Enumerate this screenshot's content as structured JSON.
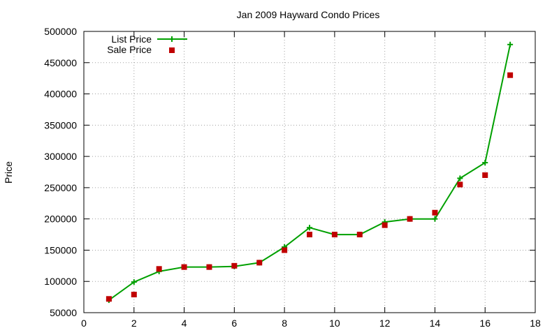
{
  "chart_data": {
    "type": "line",
    "title": "Jan 2009 Hayward Condo Prices",
    "xlabel": "",
    "ylabel": "Price",
    "xlim": [
      0,
      18
    ],
    "ylim": [
      50000,
      500000
    ],
    "xticks": [
      0,
      2,
      4,
      6,
      8,
      10,
      12,
      14,
      16,
      18
    ],
    "yticks": [
      50000,
      100000,
      150000,
      200000,
      250000,
      300000,
      350000,
      400000,
      450000,
      500000
    ],
    "grid": true,
    "legend": "top-left",
    "x": [
      1,
      2,
      3,
      4,
      5,
      6,
      7,
      8,
      9,
      10,
      11,
      12,
      13,
      14,
      15,
      16,
      17
    ],
    "series": [
      {
        "name": "List Price",
        "style": "line-with-plus-markers",
        "color": "#00a000",
        "values": [
          70000,
          99000,
          116000,
          123000,
          123000,
          124000,
          130000,
          155000,
          186000,
          175000,
          175000,
          195000,
          200000,
          200000,
          265000,
          290000,
          479000
        ]
      },
      {
        "name": "Sale Price",
        "style": "square-markers",
        "color": "#c00000",
        "values": [
          72000,
          79000,
          120000,
          123000,
          123000,
          125000,
          130000,
          150000,
          175000,
          175000,
          175000,
          190000,
          200000,
          210000,
          255000,
          270000,
          430000
        ]
      }
    ]
  }
}
